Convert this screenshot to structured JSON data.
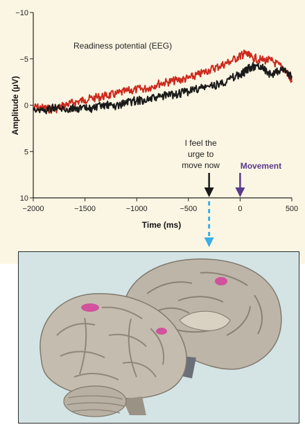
{
  "chart_data": {
    "type": "line",
    "title": "Readiness potential (EEG)",
    "xlabel": "Time (ms)",
    "ylabel": "Amplitude (µV)",
    "xlim": [
      -2000,
      500
    ],
    "ylim": [
      10,
      -10
    ],
    "y_inverted": true,
    "grid": false,
    "x_ticks": [
      {
        "value": -2000,
        "label": "−2000"
      },
      {
        "value": -1500,
        "label": "−1500"
      },
      {
        "value": -1000,
        "label": "−1000"
      },
      {
        "value": -500,
        "label": "−500"
      },
      {
        "value": 0,
        "label": "0"
      },
      {
        "value": 500,
        "label": "500"
      }
    ],
    "y_ticks": [
      {
        "value": -10,
        "label": "−10"
      },
      {
        "value": -5,
        "label": "−5"
      },
      {
        "value": 0,
        "label": "0"
      },
      {
        "value": 5,
        "label": "5"
      },
      {
        "value": 10,
        "label": "10"
      }
    ],
    "series": [
      {
        "color": "#cc2a1e",
        "x": [
          -2000,
          -1900,
          -1800,
          -1700,
          -1600,
          -1500,
          -1400,
          -1300,
          -1200,
          -1100,
          -1000,
          -900,
          -800,
          -700,
          -600,
          -500,
          -400,
          -300,
          -200,
          -100,
          0,
          50,
          100,
          200,
          300,
          400,
          450,
          500
        ],
        "y": [
          0.2,
          0.3,
          0.5,
          0.0,
          -0.3,
          -0.6,
          -0.8,
          -1.0,
          -1.2,
          -1.5,
          -1.7,
          -1.8,
          -2.3,
          -2.5,
          -2.7,
          -2.9,
          -3.3,
          -3.8,
          -4.2,
          -4.7,
          -5.3,
          -5.6,
          -5.2,
          -4.9,
          -4.8,
          -4.1,
          -3.6,
          -2.5
        ]
      },
      {
        "color": "#1a1a1a",
        "x": [
          -2000,
          -1900,
          -1800,
          -1700,
          -1600,
          -1500,
          -1400,
          -1300,
          -1200,
          -1100,
          -1000,
          -900,
          -800,
          -700,
          -600,
          -500,
          -400,
          -300,
          -200,
          -100,
          0,
          50,
          100,
          200,
          300,
          400,
          450,
          500
        ],
        "y": [
          0.3,
          0.6,
          0.2,
          0.5,
          0.3,
          0.4,
          0.3,
          0.0,
          0.1,
          -0.3,
          -0.5,
          -0.6,
          -0.8,
          -1.1,
          -1.2,
          -1.5,
          -1.8,
          -2.0,
          -2.3,
          -2.8,
          -3.3,
          -3.6,
          -4.1,
          -4.3,
          -3.2,
          -3.8,
          -3.7,
          -3.0
        ]
      }
    ],
    "annotations": [
      {
        "text_lines": [
          "I feel the",
          "urge to",
          "move now"
        ],
        "x": -300,
        "color": "#1a1a1a"
      },
      {
        "text": "Movement",
        "x": 0,
        "color": "#5a3a8c"
      }
    ]
  },
  "colors": {
    "panel_bg": "#fbf6e3",
    "brain_bg": "#d4e4e4",
    "dashed_arrow": "#3aaee8",
    "activation": "#d4409a"
  }
}
